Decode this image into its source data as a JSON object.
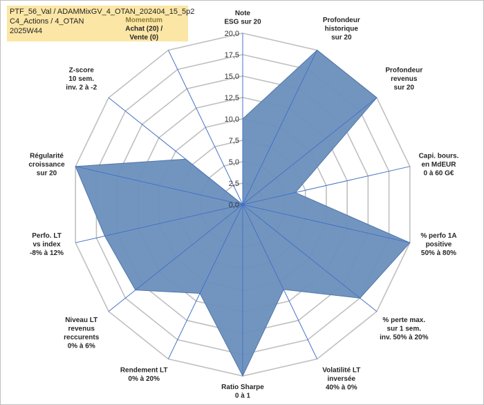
{
  "header": {
    "line1": "PTF_56_Val / ADAMMixGV_4_OTAN_202404_15_5p2",
    "line2": "C4_Actions / 4_OTAN",
    "line3": "2025W44"
  },
  "chart_data": {
    "type": "radar",
    "ylim": [
      0,
      20
    ],
    "ticks": [
      "0,0",
      "2,5",
      "5,0",
      "7,5",
      "10,0",
      "12,5",
      "15,0",
      "17,5",
      "20,0"
    ],
    "grid": true,
    "colors": {
      "fill": "#6a8fbd",
      "stroke": "#4f75a9",
      "spoke": "#4472c4",
      "grid": "#bfbfbf"
    },
    "categories": [
      [
        "Note",
        "ESG sur 20"
      ],
      [
        "Profondeur",
        "historique",
        "sur 20"
      ],
      [
        "Profondeur",
        "revenus",
        "sur 20"
      ],
      [
        "Capi. bours.",
        "en MdEUR",
        "0 à 60 G€"
      ],
      [
        "% perfo 1A",
        "positive",
        "50% à 80%"
      ],
      [
        "% perte max.",
        "sur 1 sem.",
        "inv. 50% à 20%"
      ],
      [
        "Volatilité LT",
        "inversée",
        "40% à 0%"
      ],
      [
        "Ratio Sharpe",
        "0 à 1"
      ],
      [
        "Rendement LT",
        "0% à 20%"
      ],
      [
        "Niveau LT",
        "revenus",
        "reccurents",
        "0% à 6%"
      ],
      [
        "Perfo. LT",
        "vs index",
        "-8% à 12%"
      ],
      [
        "Régularité",
        "croissance",
        "sur 20"
      ],
      [
        "Z-score",
        "10 sem.",
        "inv. 2 à -2"
      ],
      [
        "Momentum",
        "Achat (20) /",
        "Vente (0)"
      ]
    ],
    "series": [
      {
        "values": [
          10,
          20,
          20,
          6.3,
          20,
          17.5,
          11,
          20,
          11.5,
          16,
          16.5,
          20,
          8.5,
          0
        ]
      }
    ]
  }
}
